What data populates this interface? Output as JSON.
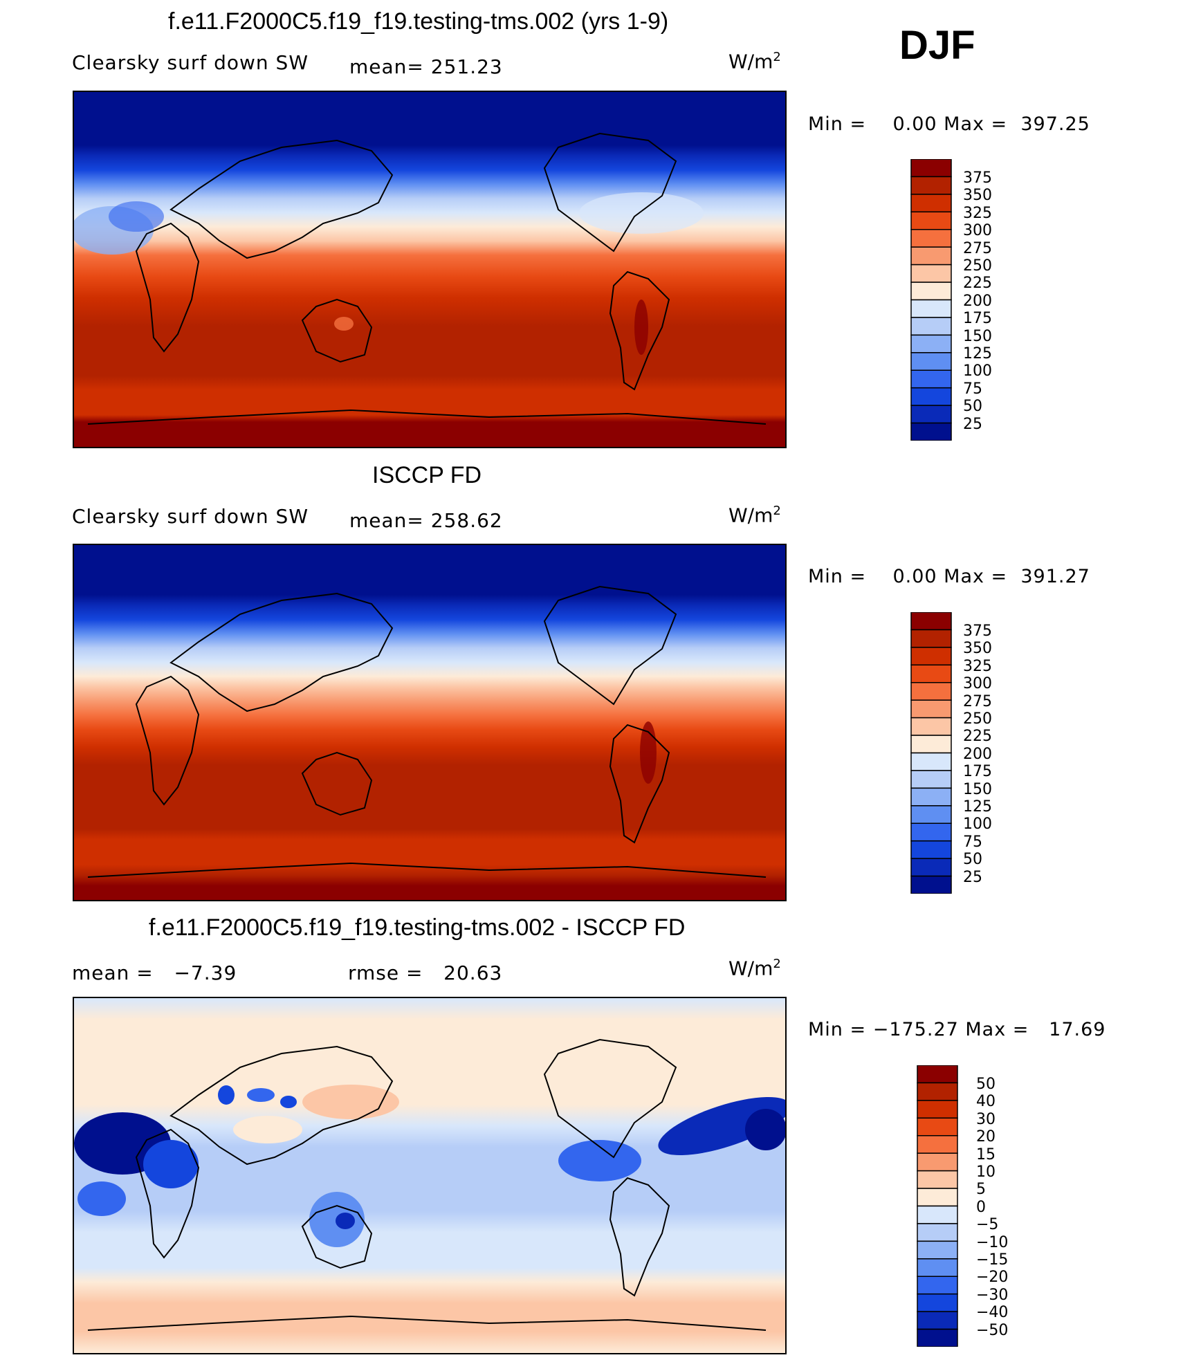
{
  "season": "DJF",
  "units_base": "W/m",
  "units_exp": "2",
  "panels": [
    {
      "title": "f.e11.F2000C5.f19_f19.testing-tms.002 (yrs 1-9)",
      "variable": "Clearsky surf down SW",
      "stat": "mean= 251.23",
      "minmax": "Min =    0.00 Max =  397.25"
    },
    {
      "title": "ISCCP FD",
      "variable": "Clearsky surf down SW",
      "stat": "mean= 258.62",
      "minmax": "Min =    0.00 Max =  391.27"
    },
    {
      "title": "f.e11.F2000C5.f19_f19.testing-tms.002 - ISCCP FD",
      "stat_mean": "mean =   −7.39",
      "stat_rmse": "rmse =   20.63",
      "minmax": "Min = −175.27 Max =   17.69"
    }
  ],
  "colorbars": {
    "absolute": {
      "labels": [
        "375",
        "350",
        "325",
        "300",
        "275",
        "250",
        "225",
        "200",
        "175",
        "150",
        "125",
        "100",
        "75",
        "50",
        "25"
      ],
      "colors": [
        "#8b0000",
        "#b22200",
        "#cf2f00",
        "#e84a14",
        "#f5703e",
        "#f89a70",
        "#fcc6a6",
        "#fdebd8",
        "#d8e7fb",
        "#b6cdf7",
        "#8cb0f5",
        "#5f8ff2",
        "#3366ee",
        "#1446dd",
        "#0a2ab8",
        "#00108e"
      ]
    },
    "difference": {
      "labels": [
        "50",
        "40",
        "30",
        "20",
        "15",
        "10",
        "5",
        "0",
        "−5",
        "−10",
        "−15",
        "−20",
        "−30",
        "−40",
        "−50"
      ],
      "colors": [
        "#8b0000",
        "#b22200",
        "#cf2f00",
        "#e84a14",
        "#f5703e",
        "#f89a70",
        "#fcc6a6",
        "#fdebd8",
        "#d8e7fb",
        "#b6cdf7",
        "#8cb0f5",
        "#5f8ff2",
        "#3366ee",
        "#1446dd",
        "#0a2ab8",
        "#00108e"
      ]
    }
  }
}
